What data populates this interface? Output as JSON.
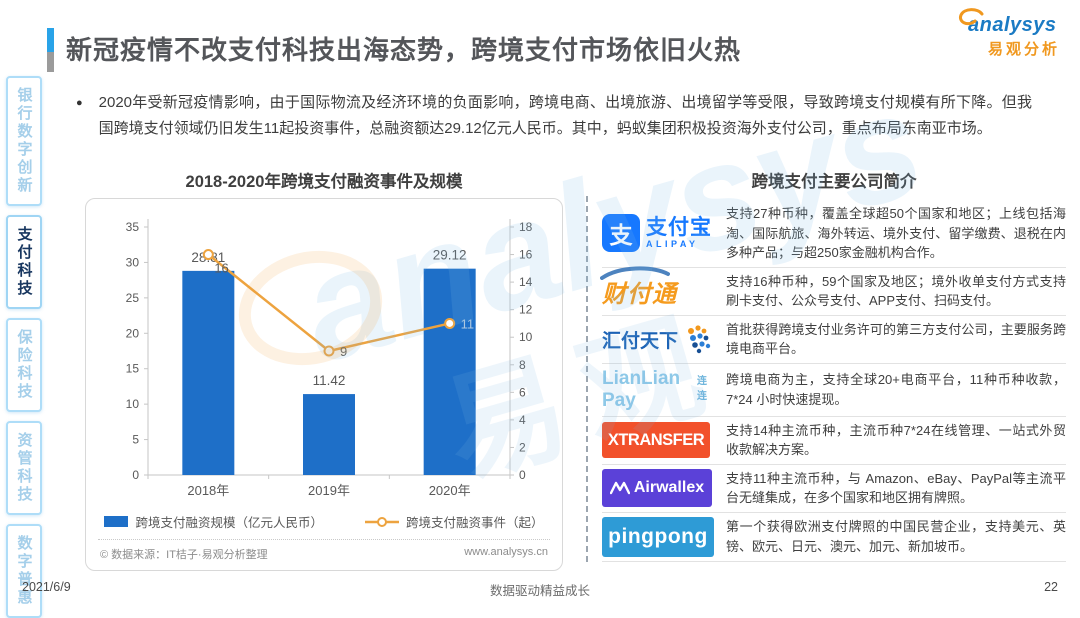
{
  "header": {
    "title": "新冠疫情不改支付科技出海态势，跨境支付市场依旧火热",
    "brand_en": "analysys",
    "brand_cn": "易观分析"
  },
  "sidebar": {
    "tabs": [
      {
        "label": "银行数字创新",
        "active": false
      },
      {
        "label": "支付科技",
        "active": true
      },
      {
        "label": "保险科技",
        "active": false
      },
      {
        "label": "资管科技",
        "active": false
      },
      {
        "label": "数字普惠",
        "active": false
      }
    ]
  },
  "summary": {
    "bullet": "2020年受新冠疫情影响，由于国际物流及经济环境的负面影响，跨境电商、出境旅游、出境留学等受限，导致跨境支付规模有所下降。但我国跨境支付领域仍旧发生11起投资事件，总融资额达29.12亿元人民币。其中，蚂蚁集团积极投资海外支付公司，重点布局东南亚市场。"
  },
  "chart_data": {
    "type": "bar+line",
    "title": "2018-2020年跨境支付融资事件及规模",
    "categories": [
      "2018年",
      "2019年",
      "2020年"
    ],
    "series": [
      {
        "name": "跨境支付融资规模（亿元人民币）",
        "type": "bar",
        "axis": "left",
        "values": [
          28.81,
          11.42,
          29.12
        ],
        "color": "#1e6fc8"
      },
      {
        "name": "跨境支付融资事件（起）",
        "type": "line",
        "axis": "right",
        "values": [
          16,
          9,
          11
        ],
        "color": "#eda33f"
      }
    ],
    "left_axis": {
      "min": 0,
      "max": 35,
      "step": 5
    },
    "right_axis": {
      "min": 0,
      "max": 18,
      "step": 2
    },
    "legend_position": "bottom",
    "grid": false
  },
  "chart_source": {
    "left": "© 数据来源：IT桔子·易观分析整理",
    "right": "www.analysys.cn"
  },
  "companies": {
    "title": "跨境支付主要公司简介",
    "items": [
      {
        "name": "支付宝",
        "logo_cn": "支付宝",
        "logo_en": "ALIPAY",
        "logo_mark": "支",
        "desc": "支持27种币种，覆盖全球超50个国家和地区；上线包括海淘、国际航旅、海外转运、境外支付、留学缴费、退税在内多种产品；与超250家金融机构合作。"
      },
      {
        "name": "财付通",
        "logo_cn": "财付通",
        "desc": "支持16种币种，59个国家及地区；境外收单支付方式支持刷卡支付、公众号支付、APP支付、扫码支付。"
      },
      {
        "name": "汇付天下",
        "logo_cn": "汇付天下",
        "desc": "首批获得跨境支付业务许可的第三方支付公司，主要服务跨境电商平台。"
      },
      {
        "name": "连连支付",
        "logo_en": "LianLian Pay",
        "logo_cn": "连连",
        "desc": "跨境电商为主，支持全球20+电商平台，11种币种收款，7*24 小时快速提现。"
      },
      {
        "name": "XTransfer",
        "logo_en": "XTRANSFER",
        "desc": "支持14种主流币种，主流币种7*24在线管理、一站式外贸收款解决方案。"
      },
      {
        "name": "Airwallex",
        "logo_en": "Airwallex",
        "desc": "支持11种主流币种，与 Amazon、eBay、PayPal等主流平台无缝集成，在多个国家和地区拥有牌照。"
      },
      {
        "name": "PingPong",
        "logo_en": "pingpong",
        "desc": "第一个获得欧洲支付牌照的中国民营企业，支持美元、英镑、欧元、日元、澳元、加元、新加坡币。"
      }
    ]
  },
  "watermark": {
    "text_en": "analysys",
    "text_cn": "易观"
  },
  "footer": {
    "date": "2021/6/9",
    "center": "数据驱动精益成长",
    "page": "22"
  }
}
